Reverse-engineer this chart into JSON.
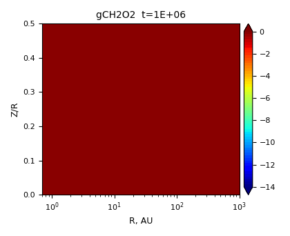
{
  "title": "gCH2O2  t=1E+06",
  "xlabel": "R, AU",
  "ylabel": "Z/R",
  "xlim_log": [
    0.7,
    1000
  ],
  "ylim": [
    0.0,
    0.5
  ],
  "vmin": -14,
  "vmax": 0,
  "colorbar_ticks": [
    0,
    -2,
    -4,
    -6,
    -8,
    -10,
    -12,
    -14
  ],
  "background_color": "#00008B"
}
